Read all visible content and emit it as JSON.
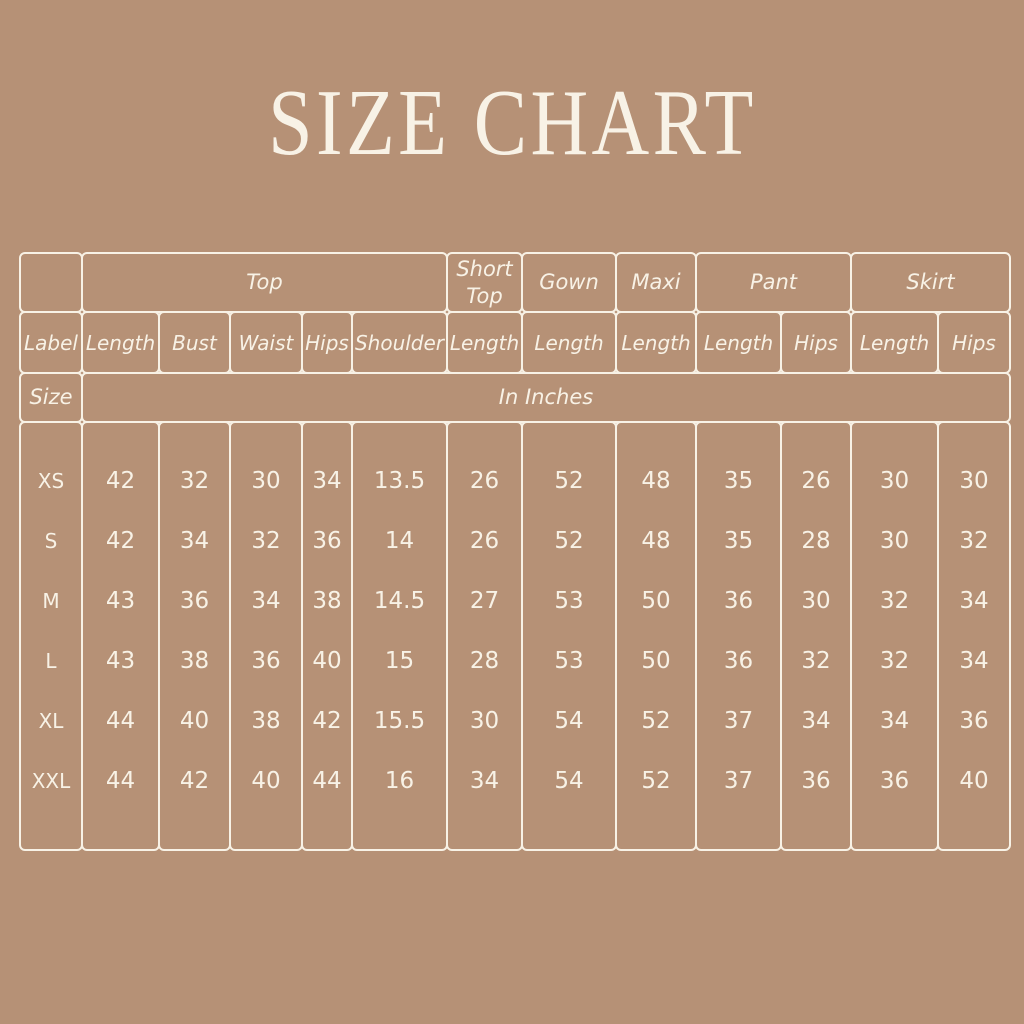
{
  "colors": {
    "background": "#b69176",
    "foreground": "#f8f2e6"
  },
  "chart_data": {
    "type": "table",
    "title": "SIZE CHART",
    "unit_row": {
      "label": "Size",
      "value": "In Inches"
    },
    "column_groups": [
      {
        "label": "",
        "span": 1
      },
      {
        "label": "Top",
        "span": 5
      },
      {
        "label": "Short Top",
        "span": 1
      },
      {
        "label": "Gown",
        "span": 1
      },
      {
        "label": "Maxi",
        "span": 1
      },
      {
        "label": "Pant",
        "span": 2
      },
      {
        "label": "Skirt",
        "span": 2
      }
    ],
    "columns": [
      "Label",
      "Length",
      "Bust",
      "Waist",
      "Hips",
      "Shoulder",
      "Length",
      "Length",
      "Length",
      "Length",
      "Hips",
      "Length",
      "Hips"
    ],
    "rows": [
      {
        "size": "XS",
        "values": [
          42,
          32,
          30,
          34,
          13.5,
          26,
          52,
          48,
          35,
          26,
          30,
          30
        ]
      },
      {
        "size": "S",
        "values": [
          42,
          34,
          32,
          36,
          14,
          26,
          52,
          48,
          35,
          28,
          30,
          32
        ]
      },
      {
        "size": "M",
        "values": [
          43,
          36,
          34,
          38,
          14.5,
          27,
          53,
          50,
          36,
          30,
          32,
          34
        ]
      },
      {
        "size": "L",
        "values": [
          43,
          38,
          36,
          40,
          15,
          28,
          53,
          50,
          36,
          32,
          32,
          34
        ]
      },
      {
        "size": "XL",
        "values": [
          44,
          40,
          38,
          42,
          15.5,
          30,
          54,
          52,
          37,
          34,
          34,
          36
        ]
      },
      {
        "size": "XXL",
        "values": [
          44,
          42,
          40,
          44,
          16,
          34,
          54,
          52,
          37,
          36,
          36,
          40
        ]
      }
    ]
  }
}
